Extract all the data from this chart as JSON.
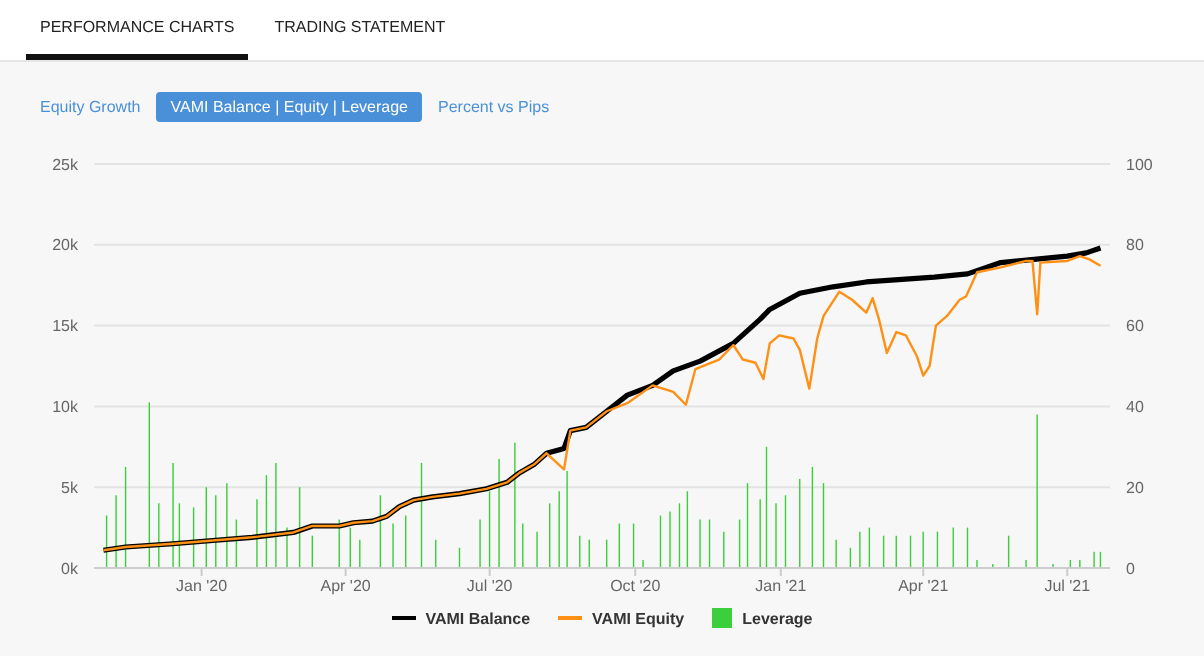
{
  "chart_data": {
    "type": "line",
    "annotations": [
      "PERFORMANCE CHARTS",
      "TRADING STATEMENT",
      "Equity Growth",
      "VAMI Balance | Equity | Leverage",
      "Percent vs Pips"
    ],
    "xlim": [
      "2019-10-25",
      "2021-07-28"
    ],
    "xticks": [
      {
        "value": "2020-01-01",
        "label": "Jan '20"
      },
      {
        "value": "2020-04-01",
        "label": "Apr '20"
      },
      {
        "value": "2020-07-01",
        "label": "Jul '20"
      },
      {
        "value": "2020-10-01",
        "label": "Oct '20"
      },
      {
        "value": "2021-01-01",
        "label": "Jan '21"
      },
      {
        "value": "2021-04-01",
        "label": "Apr '21"
      },
      {
        "value": "2021-07-01",
        "label": "Jul '21"
      }
    ],
    "ylim": [
      0,
      25000
    ],
    "yticks": [
      {
        "value": 0,
        "label": "0k"
      },
      {
        "value": 5000,
        "label": "5k"
      },
      {
        "value": 10000,
        "label": "10k"
      },
      {
        "value": 15000,
        "label": "15k"
      },
      {
        "value": 20000,
        "label": "20k"
      },
      {
        "value": 25000,
        "label": "25k"
      }
    ],
    "y2lim": [
      0,
      100
    ],
    "y2ticks": [
      0,
      20,
      40,
      60,
      80,
      100
    ],
    "grid": "y",
    "legend": "bottom",
    "marker": "none",
    "series": [
      {
        "name": "VAMI Balance",
        "color": "#000000",
        "x": [
          "2019-10-31",
          "2019-11-14",
          "2019-12-14",
          "2020-01-08",
          "2020-02-02",
          "2020-02-11",
          "2020-02-28",
          "2020-03-11",
          "2020-03-28",
          "2020-04-06",
          "2020-04-18",
          "2020-04-27",
          "2020-05-05",
          "2020-05-14",
          "2020-05-26",
          "2020-06-12",
          "2020-06-29",
          "2020-07-12",
          "2020-07-20",
          "2020-07-29",
          "2020-08-06",
          "2020-08-17",
          "2020-08-21",
          "2020-08-31",
          "2020-09-13",
          "2020-09-26",
          "2020-10-12",
          "2020-10-25",
          "2020-11-11",
          "2020-12-02",
          "2020-12-19",
          "2020-12-25",
          "2021-01-13",
          "2021-02-03",
          "2021-02-24",
          "2021-04-08",
          "2021-04-29",
          "2021-05-20",
          "2021-06-10",
          "2021-07-01",
          "2021-07-13",
          "2021-07-22"
        ],
        "values": [
          1100,
          1300,
          1500,
          1700,
          1900,
          2000,
          2200,
          2600,
          2600,
          2800,
          2900,
          3200,
          3800,
          4200,
          4400,
          4600,
          4900,
          5300,
          5900,
          6400,
          7100,
          7400,
          8500,
          8700,
          9700,
          10700,
          11300,
          12200,
          12800,
          13900,
          15400,
          16000,
          17000,
          17400,
          17700,
          18000,
          18200,
          18900,
          19100,
          19300,
          19500,
          19800
        ]
      },
      {
        "name": "VAMI Equity",
        "color": "#ff9016",
        "x": [
          "2019-10-31",
          "2019-11-14",
          "2019-12-14",
          "2020-01-08",
          "2020-02-02",
          "2020-02-11",
          "2020-02-28",
          "2020-03-11",
          "2020-03-28",
          "2020-04-06",
          "2020-04-18",
          "2020-04-27",
          "2020-05-05",
          "2020-05-14",
          "2020-05-26",
          "2020-06-12",
          "2020-06-29",
          "2020-07-12",
          "2020-07-20",
          "2020-07-29",
          "2020-08-06",
          "2020-08-17",
          "2020-08-21",
          "2020-08-31",
          "2020-09-13",
          "2020-09-26",
          "2020-10-12",
          "2020-10-25",
          "2020-11-02",
          "2020-11-08",
          "2020-11-23",
          "2020-12-02",
          "2020-12-08",
          "2020-12-16",
          "2020-12-21",
          "2020-12-25",
          "2020-12-31",
          "2021-01-09",
          "2021-01-13",
          "2021-01-19",
          "2021-01-24",
          "2021-01-28",
          "2021-02-07",
          "2021-02-15",
          "2021-02-24",
          "2021-02-28",
          "2021-03-04",
          "2021-03-09",
          "2021-03-15",
          "2021-03-21",
          "2021-03-28",
          "2021-04-01",
          "2021-04-05",
          "2021-04-09",
          "2021-04-16",
          "2021-04-24",
          "2021-04-28",
          "2021-05-05",
          "2021-05-20",
          "2021-06-05",
          "2021-06-09",
          "2021-06-12",
          "2021-06-14",
          "2021-07-01",
          "2021-07-09",
          "2021-07-15",
          "2021-07-22"
        ],
        "values": [
          1100,
          1300,
          1500,
          1700,
          1900,
          2000,
          2200,
          2600,
          2600,
          2800,
          2900,
          3200,
          3800,
          4200,
          4400,
          4600,
          4900,
          5300,
          5900,
          6400,
          7100,
          6100,
          8500,
          8700,
          9700,
          10200,
          11300,
          10900,
          10100,
          12300,
          12900,
          13800,
          12900,
          12700,
          11700,
          13900,
          14400,
          14200,
          13500,
          11100,
          14200,
          15600,
          17100,
          16600,
          15800,
          16700,
          15400,
          13300,
          14600,
          14400,
          13100,
          11900,
          12500,
          15000,
          15600,
          16600,
          16800,
          18300,
          18600,
          19000,
          19000,
          15700,
          18900,
          19000,
          19300,
          19100,
          18700
        ]
      },
      {
        "name": "Leverage",
        "type": "bar",
        "axis": "y2",
        "color": "#3ccf3c",
        "x": [
          "2019-11-02",
          "2019-11-08",
          "2019-11-14",
          "2019-11-29",
          "2019-12-05",
          "2019-12-14",
          "2019-12-18",
          "2019-12-27",
          "2020-01-04",
          "2020-01-10",
          "2020-01-17",
          "2020-01-23",
          "2020-02-05",
          "2020-02-11",
          "2020-02-17",
          "2020-02-24",
          "2020-03-03",
          "2020-03-11",
          "2020-03-28",
          "2020-04-04",
          "2020-04-10",
          "2020-04-23",
          "2020-05-01",
          "2020-05-09",
          "2020-05-19",
          "2020-05-28",
          "2020-06-12",
          "2020-06-25",
          "2020-07-01",
          "2020-07-07",
          "2020-07-17",
          "2020-07-22",
          "2020-07-31",
          "2020-08-08",
          "2020-08-14",
          "2020-08-19",
          "2020-08-27",
          "2020-09-02",
          "2020-09-13",
          "2020-09-21",
          "2020-09-30",
          "2020-10-06",
          "2020-10-17",
          "2020-10-23",
          "2020-10-29",
          "2020-11-03",
          "2020-11-11",
          "2020-11-17",
          "2020-11-26",
          "2020-12-06",
          "2020-12-11",
          "2020-12-19",
          "2020-12-23",
          "2020-12-29",
          "2021-01-04",
          "2021-01-13",
          "2021-01-21",
          "2021-01-28",
          "2021-02-05",
          "2021-02-14",
          "2021-02-20",
          "2021-02-26",
          "2021-03-07",
          "2021-03-15",
          "2021-03-24",
          "2021-04-01",
          "2021-04-10",
          "2021-04-20",
          "2021-04-29",
          "2021-05-05",
          "2021-05-15",
          "2021-05-25",
          "2021-06-05",
          "2021-06-12",
          "2021-06-22",
          "2021-07-03",
          "2021-07-09",
          "2021-07-18",
          "2021-07-22"
        ],
        "values": [
          13,
          18,
          25,
          41,
          16,
          26,
          16,
          15,
          20,
          18,
          21,
          12,
          17,
          23,
          26,
          10,
          20,
          8,
          12,
          10,
          7,
          18,
          11,
          13,
          26,
          7,
          5,
          12,
          19,
          27,
          31,
          11,
          9,
          16,
          19,
          24,
          8,
          7,
          7,
          11,
          11,
          2,
          13,
          14,
          16,
          19,
          12,
          12,
          9,
          12,
          21,
          17,
          30,
          16,
          18,
          22,
          25,
          21,
          7,
          5,
          9,
          10,
          8,
          8,
          8,
          9,
          9,
          10,
          10,
          2,
          1,
          8,
          2,
          38,
          1,
          2,
          2,
          4,
          4
        ]
      }
    ]
  }
}
